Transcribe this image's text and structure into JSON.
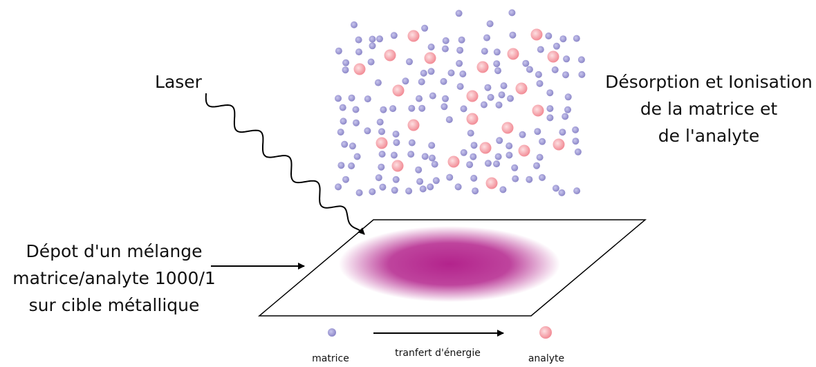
{
  "labels": {
    "laser": "Laser",
    "desorption": [
      "Désorption et Ionisation",
      "de la matrice et",
      "de l'analyte"
    ],
    "depot": [
      "Dépot d'un mélange",
      "matrice/analyte 1000/1",
      "sur cible métallique"
    ]
  },
  "legend": {
    "matrice": "matrice",
    "transfer": "tranfert d'énergie",
    "analyte": "analyte"
  }
}
